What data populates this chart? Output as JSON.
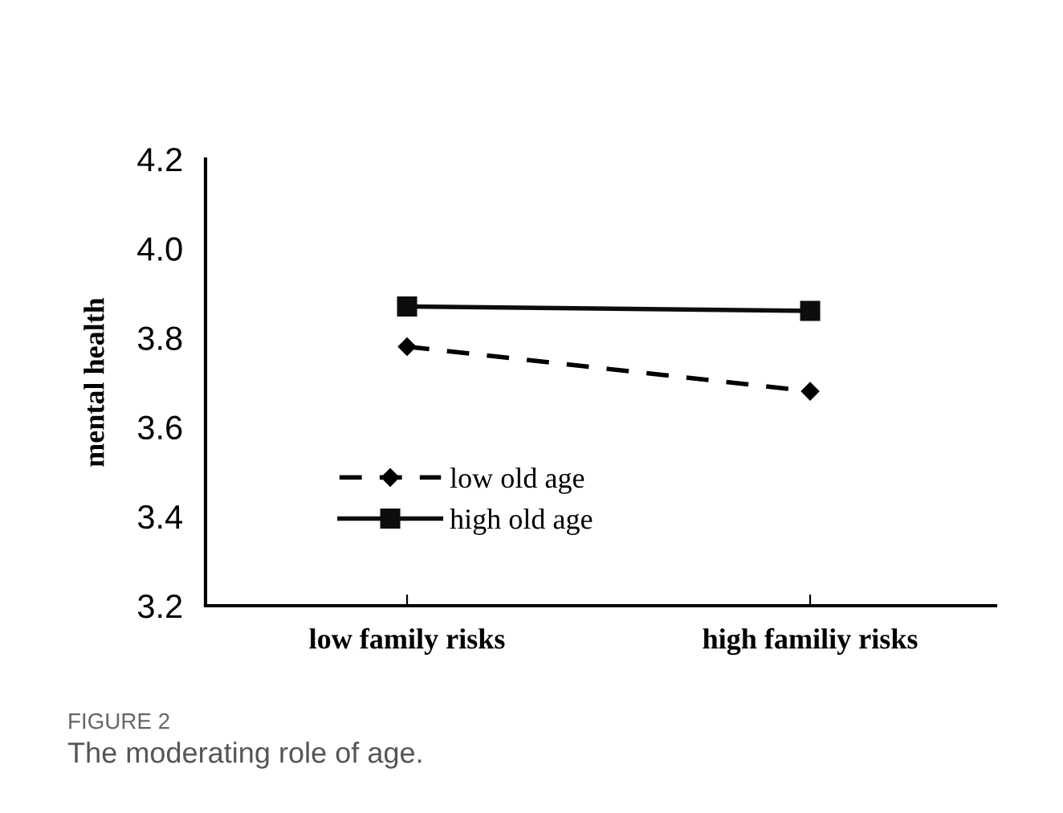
{
  "chart_data": {
    "type": "line",
    "ylabel": "mental health",
    "categories": [
      "low family risks",
      "high familiy risks"
    ],
    "series": [
      {
        "name": "low old age",
        "color": "#000000",
        "values": [
          3.78,
          3.68
        ],
        "marker": "diamond",
        "line_style": "dashed"
      },
      {
        "name": "high old age",
        "color": "#0d0d0d",
        "values": [
          3.87,
          3.86
        ],
        "marker": "square",
        "line_style": "solid"
      }
    ],
    "ylim": [
      3.2,
      4.2
    ],
    "yticks": [
      {
        "value": 3.2,
        "label": "3.2"
      },
      {
        "value": 3.4,
        "label": "3.4"
      },
      {
        "value": 3.6,
        "label": "3.6"
      },
      {
        "value": 3.8,
        "label": "3.8"
      },
      {
        "value": 4.0,
        "label": "4.0"
      },
      {
        "value": 4.2,
        "label": "4.2"
      }
    ],
    "grid": false,
    "legend": "bottom",
    "annotations": [
      "FIGURE 2",
      "The moderating role of age."
    ]
  }
}
